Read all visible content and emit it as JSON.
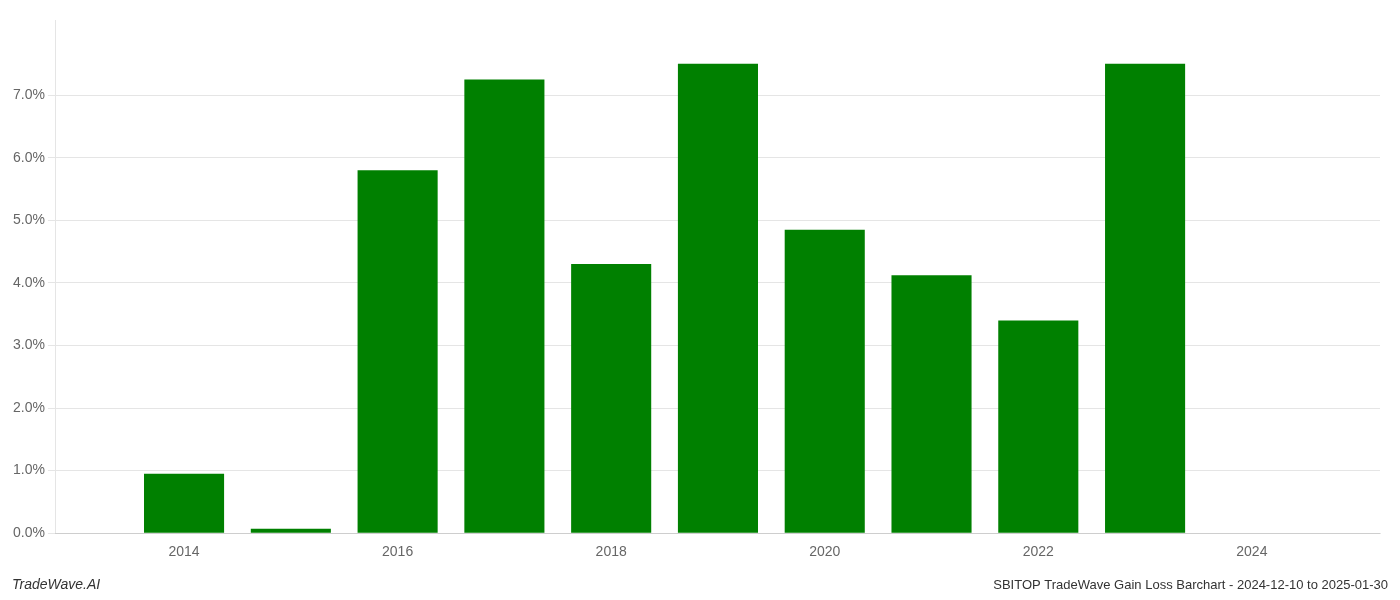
{
  "chart_data": {
    "type": "bar",
    "x": [
      2014,
      2015,
      2016,
      2017,
      2018,
      2019,
      2020,
      2021,
      2022,
      2023,
      2024
    ],
    "values": [
      0.0095,
      0.0007,
      0.058,
      0.0725,
      0.043,
      0.075,
      0.0485,
      0.0412,
      0.034,
      0.075,
      null
    ],
    "color": "#008000",
    "xlim": [
      2012.8,
      2025.2
    ],
    "xticks": [
      2014,
      2016,
      2018,
      2020,
      2022,
      2024
    ],
    "ylim": [
      0,
      0.082
    ],
    "yticks": [
      {
        "value": 0.0,
        "label": "0.0%"
      },
      {
        "value": 0.01,
        "label": "1.0%"
      },
      {
        "value": 0.02,
        "label": "2.0%"
      },
      {
        "value": 0.03,
        "label": "3.0%"
      },
      {
        "value": 0.04,
        "label": "4.0%"
      },
      {
        "value": 0.05,
        "label": "5.0%"
      },
      {
        "value": 0.06,
        "label": "6.0%"
      },
      {
        "value": 0.07,
        "label": "7.0%"
      }
    ],
    "grid": true,
    "annotations": [
      "TradeWave.AI",
      "SBITOP TradeWave Gain Loss Barchart - 2024-12-10 to 2025-01-30"
    ]
  }
}
